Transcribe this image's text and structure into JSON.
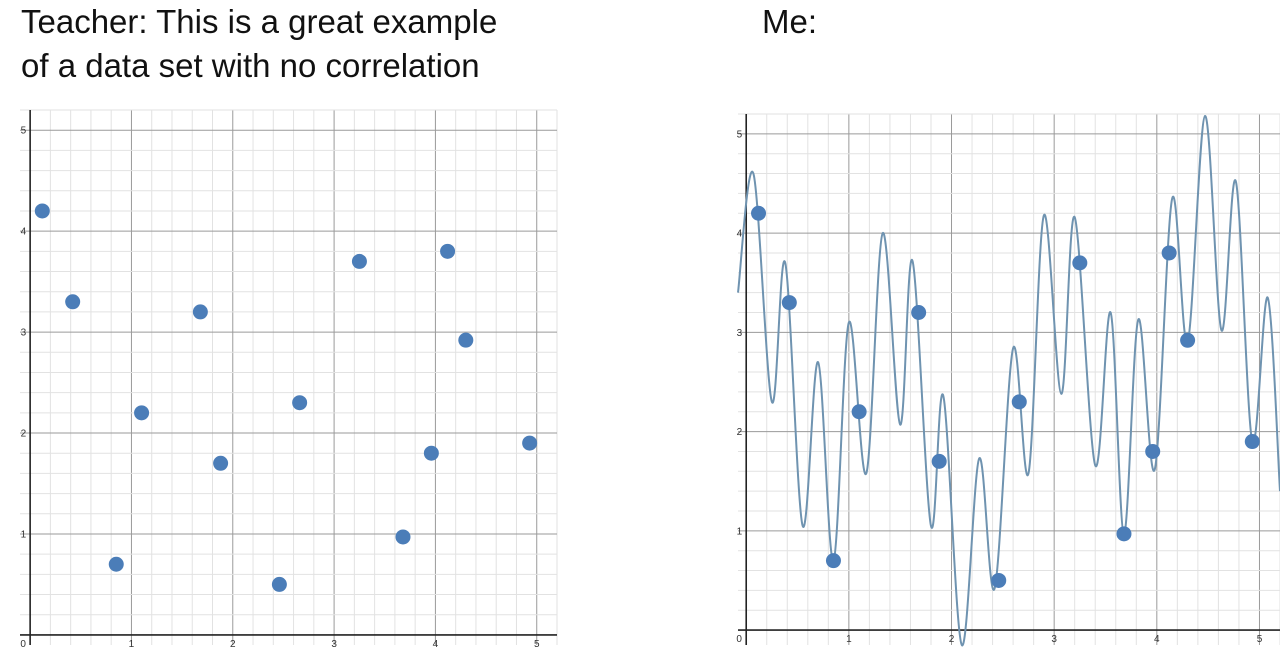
{
  "captions": {
    "left": [
      "Teacher: This is a great example",
      "of a data set with no correlation"
    ],
    "right": "Me:"
  },
  "colors": {
    "point": "#4b7db8",
    "curve": "#6f93b0",
    "grid_minor": "#e2e2e2",
    "grid_major": "#9a9a9a",
    "axis": "#222222"
  },
  "chart_data": [
    {
      "type": "scatter",
      "title": "",
      "xlabel": "",
      "ylabel": "",
      "xlim": [
        -0.1,
        5.2
      ],
      "ylim": [
        -0.1,
        5.2
      ],
      "grid": true,
      "x_ticks": [
        "0",
        "1",
        "2",
        "3",
        "4",
        "5"
      ],
      "y_ticks": [
        "1",
        "2",
        "3",
        "4",
        "5"
      ],
      "points": [
        {
          "x": 0.12,
          "y": 4.2
        },
        {
          "x": 0.42,
          "y": 3.3
        },
        {
          "x": 0.85,
          "y": 0.7
        },
        {
          "x": 1.1,
          "y": 2.2
        },
        {
          "x": 1.68,
          "y": 3.2
        },
        {
          "x": 1.88,
          "y": 1.7
        },
        {
          "x": 2.46,
          "y": 0.5
        },
        {
          "x": 2.66,
          "y": 2.3
        },
        {
          "x": 3.25,
          "y": 3.7
        },
        {
          "x": 3.68,
          "y": 0.97
        },
        {
          "x": 3.96,
          "y": 1.8
        },
        {
          "x": 4.12,
          "y": 3.8
        },
        {
          "x": 4.3,
          "y": 2.92
        },
        {
          "x": 4.93,
          "y": 1.9
        }
      ]
    },
    {
      "type": "scatter",
      "title": "",
      "xlabel": "",
      "ylabel": "",
      "xlim": [
        -0.08,
        5.2
      ],
      "ylim": [
        -0.15,
        5.2
      ],
      "grid": true,
      "x_ticks": [
        "0",
        "1",
        "2",
        "3",
        "4",
        "5"
      ],
      "y_ticks": [
        "1",
        "2",
        "3",
        "4",
        "5"
      ],
      "points": [
        {
          "x": 0.12,
          "y": 4.2
        },
        {
          "x": 0.42,
          "y": 3.3
        },
        {
          "x": 0.85,
          "y": 0.7
        },
        {
          "x": 1.1,
          "y": 2.2
        },
        {
          "x": 1.68,
          "y": 3.2
        },
        {
          "x": 1.88,
          "y": 1.7
        },
        {
          "x": 2.46,
          "y": 0.5
        },
        {
          "x": 2.66,
          "y": 2.3
        },
        {
          "x": 3.25,
          "y": 3.7
        },
        {
          "x": 3.68,
          "y": 0.97
        },
        {
          "x": 3.96,
          "y": 1.8
        },
        {
          "x": 4.12,
          "y": 3.8
        },
        {
          "x": 4.3,
          "y": 2.92
        },
        {
          "x": 4.93,
          "y": 1.9
        }
      ],
      "curve": [
        {
          "x": -0.08,
          "y": 3.4
        },
        {
          "x": 0.07,
          "y": 4.6
        },
        {
          "x": 0.25,
          "y": 2.3
        },
        {
          "x": 0.38,
          "y": 3.7
        },
        {
          "x": 0.55,
          "y": 1.05
        },
        {
          "x": 0.7,
          "y": 2.7
        },
        {
          "x": 0.85,
          "y": 0.7
        },
        {
          "x": 1.0,
          "y": 3.1
        },
        {
          "x": 1.17,
          "y": 1.58
        },
        {
          "x": 1.33,
          "y": 4.0
        },
        {
          "x": 1.5,
          "y": 2.07
        },
        {
          "x": 1.62,
          "y": 3.72
        },
        {
          "x": 1.8,
          "y": 1.05
        },
        {
          "x": 1.92,
          "y": 2.36
        },
        {
          "x": 2.1,
          "y": -0.15
        },
        {
          "x": 2.27,
          "y": 1.73
        },
        {
          "x": 2.42,
          "y": 0.42
        },
        {
          "x": 2.6,
          "y": 2.84
        },
        {
          "x": 2.75,
          "y": 1.58
        },
        {
          "x": 2.9,
          "y": 4.18
        },
        {
          "x": 3.07,
          "y": 2.38
        },
        {
          "x": 3.2,
          "y": 4.16
        },
        {
          "x": 3.4,
          "y": 1.66
        },
        {
          "x": 3.55,
          "y": 3.2
        },
        {
          "x": 3.68,
          "y": 0.97
        },
        {
          "x": 3.82,
          "y": 3.13
        },
        {
          "x": 3.98,
          "y": 1.62
        },
        {
          "x": 4.15,
          "y": 4.35
        },
        {
          "x": 4.3,
          "y": 2.9
        },
        {
          "x": 4.47,
          "y": 5.18
        },
        {
          "x": 4.63,
          "y": 3.02
        },
        {
          "x": 4.77,
          "y": 4.52
        },
        {
          "x": 4.93,
          "y": 1.9
        },
        {
          "x": 5.08,
          "y": 3.35
        },
        {
          "x": 5.2,
          "y": 1.4
        }
      ]
    }
  ]
}
